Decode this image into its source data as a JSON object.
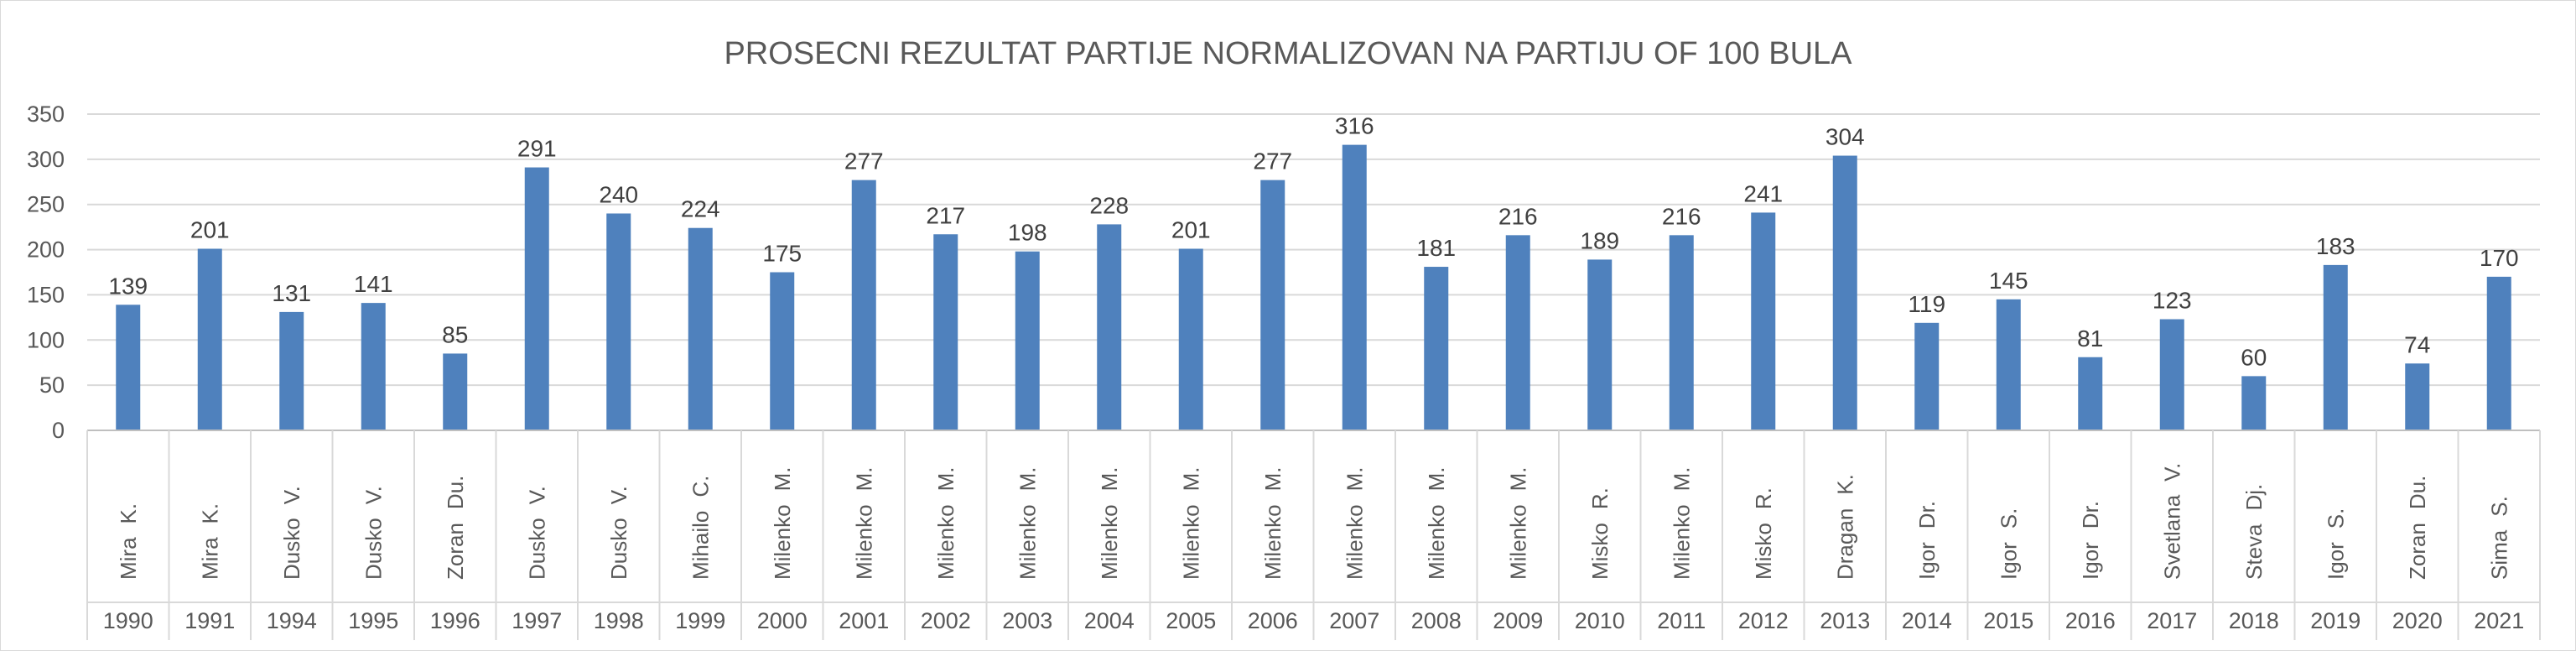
{
  "chart_data": {
    "type": "bar",
    "title": "PROSECNI REZULTAT PARTIJE NORMALIZOVAN NA PARTIJU OF 100 BULA",
    "xlabel": "",
    "ylabel": "",
    "ylim": [
      0,
      350
    ],
    "yticks": [
      0,
      50,
      100,
      150,
      200,
      250,
      300,
      350
    ],
    "grid": true,
    "legend": "none",
    "bar_color": "#4f81bd",
    "categories": [
      {
        "name": "Mira",
        "initial": "K.",
        "year": "1990"
      },
      {
        "name": "Mira",
        "initial": "K.",
        "year": "1991"
      },
      {
        "name": "Dusko",
        "initial": "V.",
        "year": "1994"
      },
      {
        "name": "Dusko",
        "initial": "V.",
        "year": "1995"
      },
      {
        "name": "Zoran",
        "initial": "Du.",
        "year": "1996"
      },
      {
        "name": "Dusko",
        "initial": "V.",
        "year": "1997"
      },
      {
        "name": "Dusko",
        "initial": "V.",
        "year": "1998"
      },
      {
        "name": "Mihailo",
        "initial": "C.",
        "year": "1999"
      },
      {
        "name": "Milenko",
        "initial": "M.",
        "year": "2000"
      },
      {
        "name": "Milenko",
        "initial": "M.",
        "year": "2001"
      },
      {
        "name": "Milenko",
        "initial": "M.",
        "year": "2002"
      },
      {
        "name": "Milenko",
        "initial": "M.",
        "year": "2003"
      },
      {
        "name": "Milenko",
        "initial": "M.",
        "year": "2004"
      },
      {
        "name": "Milenko",
        "initial": "M.",
        "year": "2005"
      },
      {
        "name": "Milenko",
        "initial": "M.",
        "year": "2006"
      },
      {
        "name": "Milenko",
        "initial": "M.",
        "year": "2007"
      },
      {
        "name": "Milenko",
        "initial": "M.",
        "year": "2008"
      },
      {
        "name": "Milenko",
        "initial": "M.",
        "year": "2009"
      },
      {
        "name": "Misko",
        "initial": "R.",
        "year": "2010"
      },
      {
        "name": "Milenko",
        "initial": "M.",
        "year": "2011"
      },
      {
        "name": "Misko",
        "initial": "R.",
        "year": "2012"
      },
      {
        "name": "Dragan",
        "initial": "K.",
        "year": "2013"
      },
      {
        "name": "Igor",
        "initial": "Dr.",
        "year": "2014"
      },
      {
        "name": "Igor",
        "initial": "S.",
        "year": "2015"
      },
      {
        "name": "Igor",
        "initial": "Dr.",
        "year": "2016"
      },
      {
        "name": "Svetlana",
        "initial": "V.",
        "year": "2017"
      },
      {
        "name": "Steva",
        "initial": "Dj.",
        "year": "2018"
      },
      {
        "name": "Igor",
        "initial": "S.",
        "year": "2019"
      },
      {
        "name": "Zoran",
        "initial": "Du.",
        "year": "2020"
      },
      {
        "name": "Sima",
        "initial": "S.",
        "year": "2021"
      }
    ],
    "values": [
      139,
      201,
      131,
      141,
      85,
      291,
      240,
      224,
      175,
      277,
      217,
      198,
      228,
      201,
      277,
      316,
      181,
      216,
      189,
      216,
      241,
      304,
      119,
      145,
      81,
      123,
      60,
      183,
      74,
      170
    ]
  }
}
